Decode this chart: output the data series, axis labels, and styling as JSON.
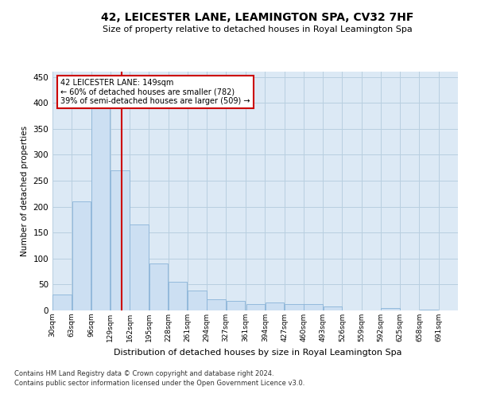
{
  "title": "42, LEICESTER LANE, LEAMINGTON SPA, CV32 7HF",
  "subtitle": "Size of property relative to detached houses in Royal Leamington Spa",
  "xlabel": "Distribution of detached houses by size in Royal Leamington Spa",
  "ylabel": "Number of detached properties",
  "footer1": "Contains HM Land Registry data © Crown copyright and database right 2024.",
  "footer2": "Contains public sector information licensed under the Open Government Licence v3.0.",
  "annotation_title": "42 LEICESTER LANE: 149sqm",
  "annotation_line1": "← 60% of detached houses are smaller (782)",
  "annotation_line2": "39% of semi-detached houses are larger (509) →",
  "property_size": 149,
  "bar_color": "#ccdff2",
  "bar_edge_color": "#8ab4d8",
  "vline_color": "#cc0000",
  "annotation_box_color": "#cc0000",
  "background_color": "#ffffff",
  "plot_bg_color": "#dce9f5",
  "grid_color": "#b8cfe0",
  "bin_edges": [
    30,
    63,
    96,
    129,
    162,
    195,
    228,
    261,
    294,
    327,
    361,
    394,
    427,
    460,
    493,
    526,
    559,
    592,
    625,
    658,
    691
  ],
  "bin_labels": [
    "30sqm",
    "63sqm",
    "96sqm",
    "129sqm",
    "162sqm",
    "195sqm",
    "228sqm",
    "261sqm",
    "294sqm",
    "327sqm",
    "361sqm",
    "394sqm",
    "427sqm",
    "460sqm",
    "493sqm",
    "526sqm",
    "559sqm",
    "592sqm",
    "625sqm",
    "658sqm",
    "691sqm"
  ],
  "bar_heights": [
    30,
    210,
    395,
    270,
    165,
    90,
    55,
    38,
    22,
    18,
    13,
    15,
    12,
    12,
    8,
    0,
    0,
    5,
    0,
    1
  ],
  "ylim": [
    0,
    460
  ],
  "yticks": [
    0,
    50,
    100,
    150,
    200,
    250,
    300,
    350,
    400,
    450
  ]
}
